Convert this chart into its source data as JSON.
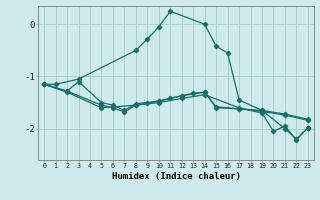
{
  "xlabel": "Humidex (Indice chaleur)",
  "bg_color": "#ceeaea",
  "grid_color": "#aacece",
  "line_color": "#1a6e6a",
  "xlim": [
    -0.5,
    23.5
  ],
  "ylim": [
    -2.6,
    0.35
  ],
  "yticks": [
    0,
    -1,
    -2
  ],
  "xticks": [
    0,
    1,
    2,
    3,
    4,
    5,
    6,
    7,
    8,
    9,
    10,
    11,
    12,
    13,
    14,
    15,
    16,
    17,
    18,
    19,
    20,
    21,
    22,
    23
  ],
  "lines": [
    {
      "x": [
        0,
        1,
        3,
        8,
        9,
        10,
        11,
        14,
        15,
        16,
        17,
        19,
        21,
        22,
        23
      ],
      "y": [
        -1.15,
        -1.15,
        -1.05,
        -0.5,
        -0.28,
        -0.05,
        0.25,
        0.0,
        -0.42,
        -0.55,
        -1.45,
        -1.65,
        -2.0,
        -2.2,
        -1.98
      ]
    },
    {
      "x": [
        0,
        2,
        3,
        5,
        6,
        7,
        8,
        9,
        10,
        11,
        12,
        13,
        14,
        15,
        17,
        19,
        21,
        23
      ],
      "y": [
        -1.15,
        -1.28,
        -1.1,
        -1.5,
        -1.55,
        -1.65,
        -1.52,
        -1.5,
        -1.47,
        -1.42,
        -1.37,
        -1.32,
        -1.3,
        -1.6,
        -1.62,
        -1.65,
        -1.72,
        -1.82
      ]
    },
    {
      "x": [
        0,
        2,
        5,
        6,
        7,
        8,
        10,
        12,
        14,
        15,
        17,
        19,
        21,
        23
      ],
      "y": [
        -1.15,
        -1.28,
        -1.55,
        -1.6,
        -1.68,
        -1.55,
        -1.47,
        -1.37,
        -1.3,
        -1.58,
        -1.62,
        -1.67,
        -1.74,
        -1.84
      ]
    },
    {
      "x": [
        0,
        2,
        5,
        8,
        10,
        12,
        14,
        17,
        19,
        20,
        21,
        22,
        23
      ],
      "y": [
        -1.15,
        -1.3,
        -1.6,
        -1.55,
        -1.5,
        -1.42,
        -1.35,
        -1.6,
        -1.7,
        -2.05,
        -1.95,
        -2.22,
        -1.98
      ]
    }
  ]
}
